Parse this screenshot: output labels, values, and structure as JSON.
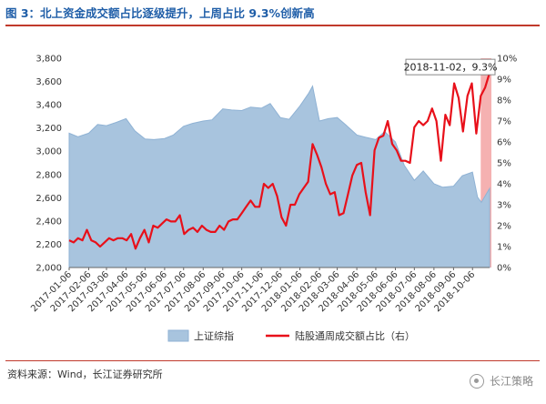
{
  "title": "图 3：北上资金成交额占比逐级提升，上周占比 9.3%创新高",
  "source": "资料来源：Wind，长江证券研究所",
  "watermark": "长江策略",
  "colors": {
    "area": "#a8c4de",
    "area_stroke": "#8fb2d4",
    "line": "#e8101a",
    "highlight": "#f3a3a3",
    "title": "#1f5ea8",
    "rule": "#c0392b"
  },
  "chart_data": {
    "type": "area",
    "title": "",
    "x_tick_labels": [
      "2017-01-06",
      "2017-02-06",
      "2017-03-06",
      "2017-04-06",
      "2017-05-06",
      "2017-06-06",
      "2017-07-06",
      "2017-08-06",
      "2017-09-06",
      "2017-10-06",
      "2017-11-06",
      "2017-12-06",
      "2018-01-06",
      "2018-02-06",
      "2018-03-06",
      "2018-04-06",
      "2018-05-06",
      "2018-06-06",
      "2018-07-06",
      "2018-08-06",
      "2018-09-06",
      "2018-10-06"
    ],
    "x_range": [
      "2017-01-06",
      "2018-11-02"
    ],
    "y_left": {
      "min": 2000,
      "max": 3800,
      "ticks": [
        2000,
        2200,
        2400,
        2600,
        2800,
        3000,
        3200,
        3400,
        3600,
        3800
      ],
      "tick_labels": [
        "2,000",
        "2,200",
        "2,400",
        "2,600",
        "2,800",
        "3,000",
        "3,200",
        "3,400",
        "3,600",
        "3,800"
      ]
    },
    "y_right": {
      "min": 0,
      "max": 10,
      "ticks": [
        0,
        1,
        2,
        3,
        4,
        5,
        6,
        7,
        8,
        9,
        10
      ],
      "tick_labels": [
        "0%",
        "1%",
        "2%",
        "3%",
        "4%",
        "5%",
        "6%",
        "7%",
        "8%",
        "9%",
        "10%"
      ]
    },
    "series": [
      {
        "name": "上证综指",
        "kind": "area",
        "axis": "left",
        "points": [
          [
            "2017-01-06",
            3155
          ],
          [
            "2017-01-20",
            3125
          ],
          [
            "2017-02-06",
            3155
          ],
          [
            "2017-02-20",
            3230
          ],
          [
            "2017-03-06",
            3220
          ],
          [
            "2017-03-20",
            3245
          ],
          [
            "2017-04-06",
            3280
          ],
          [
            "2017-04-20",
            3175
          ],
          [
            "2017-05-06",
            3105
          ],
          [
            "2017-05-20",
            3100
          ],
          [
            "2017-06-06",
            3110
          ],
          [
            "2017-06-20",
            3140
          ],
          [
            "2017-07-06",
            3215
          ],
          [
            "2017-07-20",
            3240
          ],
          [
            "2017-08-06",
            3260
          ],
          [
            "2017-08-20",
            3270
          ],
          [
            "2017-09-06",
            3365
          ],
          [
            "2017-09-20",
            3355
          ],
          [
            "2017-10-06",
            3350
          ],
          [
            "2017-10-20",
            3380
          ],
          [
            "2017-11-06",
            3370
          ],
          [
            "2017-11-20",
            3410
          ],
          [
            "2017-12-06",
            3290
          ],
          [
            "2017-12-20",
            3275
          ],
          [
            "2018-01-06",
            3390
          ],
          [
            "2018-01-20",
            3500
          ],
          [
            "2018-01-26",
            3560
          ],
          [
            "2018-02-06",
            3260
          ],
          [
            "2018-02-20",
            3280
          ],
          [
            "2018-03-06",
            3290
          ],
          [
            "2018-03-20",
            3225
          ],
          [
            "2018-04-06",
            3140
          ],
          [
            "2018-04-20",
            3120
          ],
          [
            "2018-05-06",
            3100
          ],
          [
            "2018-05-20",
            3170
          ],
          [
            "2018-06-06",
            3080
          ],
          [
            "2018-06-20",
            2880
          ],
          [
            "2018-07-06",
            2750
          ],
          [
            "2018-07-20",
            2830
          ],
          [
            "2018-08-06",
            2720
          ],
          [
            "2018-08-20",
            2690
          ],
          [
            "2018-09-06",
            2700
          ],
          [
            "2018-09-20",
            2790
          ],
          [
            "2018-10-06",
            2820
          ],
          [
            "2018-10-14",
            2605
          ],
          [
            "2018-10-20",
            2560
          ],
          [
            "2018-11-02",
            2680
          ]
        ]
      },
      {
        "name": "陆股通周成交额占比（右）",
        "kind": "line",
        "axis": "right",
        "points": [
          [
            "2017-01-06",
            1.3
          ],
          [
            "2017-01-13",
            1.2
          ],
          [
            "2017-01-20",
            1.4
          ],
          [
            "2017-01-27",
            1.3
          ],
          [
            "2017-02-03",
            1.8
          ],
          [
            "2017-02-10",
            1.3
          ],
          [
            "2017-02-17",
            1.2
          ],
          [
            "2017-02-24",
            1.0
          ],
          [
            "2017-03-03",
            1.2
          ],
          [
            "2017-03-10",
            1.4
          ],
          [
            "2017-03-17",
            1.3
          ],
          [
            "2017-03-24",
            1.4
          ],
          [
            "2017-03-31",
            1.4
          ],
          [
            "2017-04-07",
            1.3
          ],
          [
            "2017-04-14",
            1.6
          ],
          [
            "2017-04-21",
            0.9
          ],
          [
            "2017-04-28",
            1.4
          ],
          [
            "2017-05-05",
            1.8
          ],
          [
            "2017-05-12",
            1.2
          ],
          [
            "2017-05-19",
            2.0
          ],
          [
            "2017-05-26",
            1.9
          ],
          [
            "2017-06-02",
            2.1
          ],
          [
            "2017-06-09",
            2.3
          ],
          [
            "2017-06-16",
            2.2
          ],
          [
            "2017-06-23",
            2.2
          ],
          [
            "2017-06-30",
            2.5
          ],
          [
            "2017-07-07",
            1.6
          ],
          [
            "2017-07-14",
            1.8
          ],
          [
            "2017-07-21",
            1.9
          ],
          [
            "2017-07-28",
            1.7
          ],
          [
            "2017-08-04",
            2.0
          ],
          [
            "2017-08-11",
            1.8
          ],
          [
            "2017-08-18",
            1.7
          ],
          [
            "2017-08-25",
            1.7
          ],
          [
            "2017-09-01",
            2.0
          ],
          [
            "2017-09-08",
            1.8
          ],
          [
            "2017-09-15",
            2.2
          ],
          [
            "2017-09-22",
            2.3
          ],
          [
            "2017-09-29",
            2.3
          ],
          [
            "2017-10-06",
            2.6
          ],
          [
            "2017-10-13",
            2.9
          ],
          [
            "2017-10-20",
            3.2
          ],
          [
            "2017-10-27",
            2.9
          ],
          [
            "2017-11-03",
            2.9
          ],
          [
            "2017-11-10",
            4.0
          ],
          [
            "2017-11-17",
            3.8
          ],
          [
            "2017-11-24",
            4.0
          ],
          [
            "2017-12-01",
            3.4
          ],
          [
            "2017-12-08",
            2.4
          ],
          [
            "2017-12-15",
            2.0
          ],
          [
            "2017-12-22",
            3.0
          ],
          [
            "2017-12-29",
            3.0
          ],
          [
            "2018-01-05",
            3.5
          ],
          [
            "2018-01-12",
            3.8
          ],
          [
            "2018-01-19",
            4.1
          ],
          [
            "2018-01-26",
            5.9
          ],
          [
            "2018-02-02",
            5.4
          ],
          [
            "2018-02-09",
            4.8
          ],
          [
            "2018-02-16",
            4.0
          ],
          [
            "2018-02-23",
            3.5
          ],
          [
            "2018-03-02",
            3.6
          ],
          [
            "2018-03-09",
            2.5
          ],
          [
            "2018-03-16",
            2.6
          ],
          [
            "2018-03-23",
            3.5
          ],
          [
            "2018-03-30",
            4.4
          ],
          [
            "2018-04-06",
            4.9
          ],
          [
            "2018-04-13",
            5.0
          ],
          [
            "2018-04-20",
            3.6
          ],
          [
            "2018-04-27",
            2.5
          ],
          [
            "2018-05-04",
            5.6
          ],
          [
            "2018-05-11",
            6.2
          ],
          [
            "2018-05-18",
            6.3
          ],
          [
            "2018-05-25",
            7.0
          ],
          [
            "2018-06-01",
            5.9
          ],
          [
            "2018-06-08",
            5.6
          ],
          [
            "2018-06-15",
            5.1
          ],
          [
            "2018-06-22",
            5.1
          ],
          [
            "2018-06-29",
            5.0
          ],
          [
            "2018-07-06",
            6.7
          ],
          [
            "2018-07-13",
            7.0
          ],
          [
            "2018-07-20",
            6.8
          ],
          [
            "2018-07-27",
            7.0
          ],
          [
            "2018-08-03",
            7.6
          ],
          [
            "2018-08-10",
            7.0
          ],
          [
            "2018-08-17",
            5.1
          ],
          [
            "2018-08-24",
            7.3
          ],
          [
            "2018-08-31",
            6.8
          ],
          [
            "2018-09-07",
            8.8
          ],
          [
            "2018-09-14",
            8.1
          ],
          [
            "2018-09-21",
            6.5
          ],
          [
            "2018-09-28",
            8.2
          ],
          [
            "2018-10-05",
            8.8
          ],
          [
            "2018-10-12",
            6.4
          ],
          [
            "2018-10-19",
            8.2
          ],
          [
            "2018-10-26",
            8.6
          ],
          [
            "2018-11-02",
            9.3
          ]
        ]
      }
    ],
    "highlight_band": {
      "from": "2018-10-19",
      "to": "2018-11-02"
    },
    "annotation": {
      "text": "2018-11-02，9.3%",
      "x": "2018-11-02",
      "y": 9.3
    },
    "legend": {
      "position": "bottom",
      "entries": [
        "上证综指",
        "陆股通周成交额占比（右）"
      ]
    },
    "grid": false
  }
}
